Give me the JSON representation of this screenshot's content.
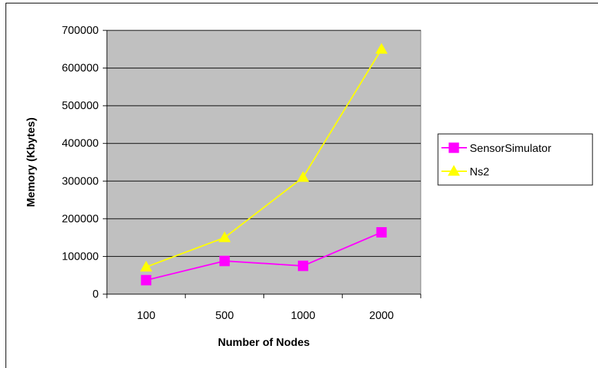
{
  "chart_data": {
    "type": "line",
    "categories": [
      "100",
      "500",
      "1000",
      "2000"
    ],
    "xlabel": "Number of Nodes",
    "ylabel": "Memory (Kbytes)",
    "ylim": [
      0,
      700000
    ],
    "yticks": [
      "0",
      "100000",
      "200000",
      "300000",
      "400000",
      "500000",
      "600000",
      "700000"
    ],
    "grid": "horizontal",
    "legend_position": "right",
    "plot_background": "#c0c0c0",
    "series": [
      {
        "name": "SensorSimulator",
        "values": [
          37000,
          88000,
          75000,
          164000
        ],
        "color": "#ff00ff",
        "marker": "square"
      },
      {
        "name": "Ns2",
        "values": [
          72000,
          150000,
          310000,
          650000
        ],
        "color": "#ffff00",
        "marker": "triangle"
      }
    ]
  }
}
